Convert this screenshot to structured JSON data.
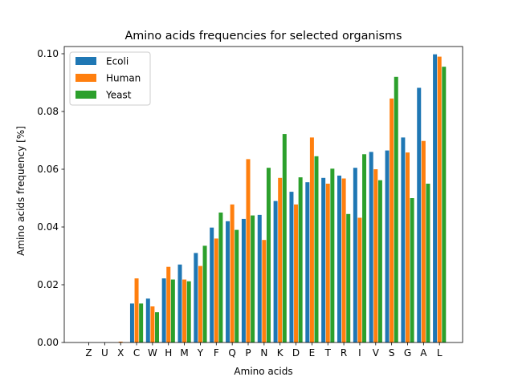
{
  "chart_data": {
    "type": "bar",
    "title": "Amino acids frequencies for selected organisms",
    "xlabel": "Amino acids",
    "ylabel": "Amino acids frequency [%]",
    "ylim": [
      0,
      0.1025
    ],
    "yticks": [
      0.0,
      0.02,
      0.04,
      0.06,
      0.08,
      0.1
    ],
    "ytick_labels": [
      "0.00",
      "0.02",
      "0.04",
      "0.06",
      "0.08",
      "0.10"
    ],
    "legend_position": "top-left",
    "grid": false,
    "categories": [
      "Z",
      "U",
      "X",
      "C",
      "W",
      "H",
      "M",
      "Y",
      "F",
      "Q",
      "P",
      "N",
      "K",
      "D",
      "E",
      "T",
      "R",
      "I",
      "V",
      "S",
      "G",
      "A",
      "L"
    ],
    "series": [
      {
        "name": "Ecoli",
        "color": "#1f77b4",
        "values": [
          0.0,
          0.0,
          0.0,
          0.0135,
          0.0152,
          0.0222,
          0.027,
          0.031,
          0.0398,
          0.042,
          0.0428,
          0.0442,
          0.049,
          0.0522,
          0.0555,
          0.057,
          0.0578,
          0.0605,
          0.066,
          0.0665,
          0.071,
          0.0882,
          0.0998
        ]
      },
      {
        "name": "Human",
        "color": "#ff7f0e",
        "values": [
          0.0,
          0.0,
          0.0003,
          0.0222,
          0.0125,
          0.0262,
          0.0218,
          0.0265,
          0.036,
          0.0478,
          0.0635,
          0.0355,
          0.057,
          0.0478,
          0.071,
          0.055,
          0.0568,
          0.0432,
          0.06,
          0.0845,
          0.0658,
          0.0698,
          0.099
        ]
      },
      {
        "name": "Yeast",
        "color": "#2ca02c",
        "values": [
          0.0,
          0.0,
          0.0,
          0.0135,
          0.0105,
          0.0218,
          0.0212,
          0.0335,
          0.045,
          0.039,
          0.044,
          0.0605,
          0.0722,
          0.0572,
          0.0645,
          0.0602,
          0.0445,
          0.0652,
          0.0562,
          0.092,
          0.05,
          0.055,
          0.0955
        ]
      }
    ]
  }
}
